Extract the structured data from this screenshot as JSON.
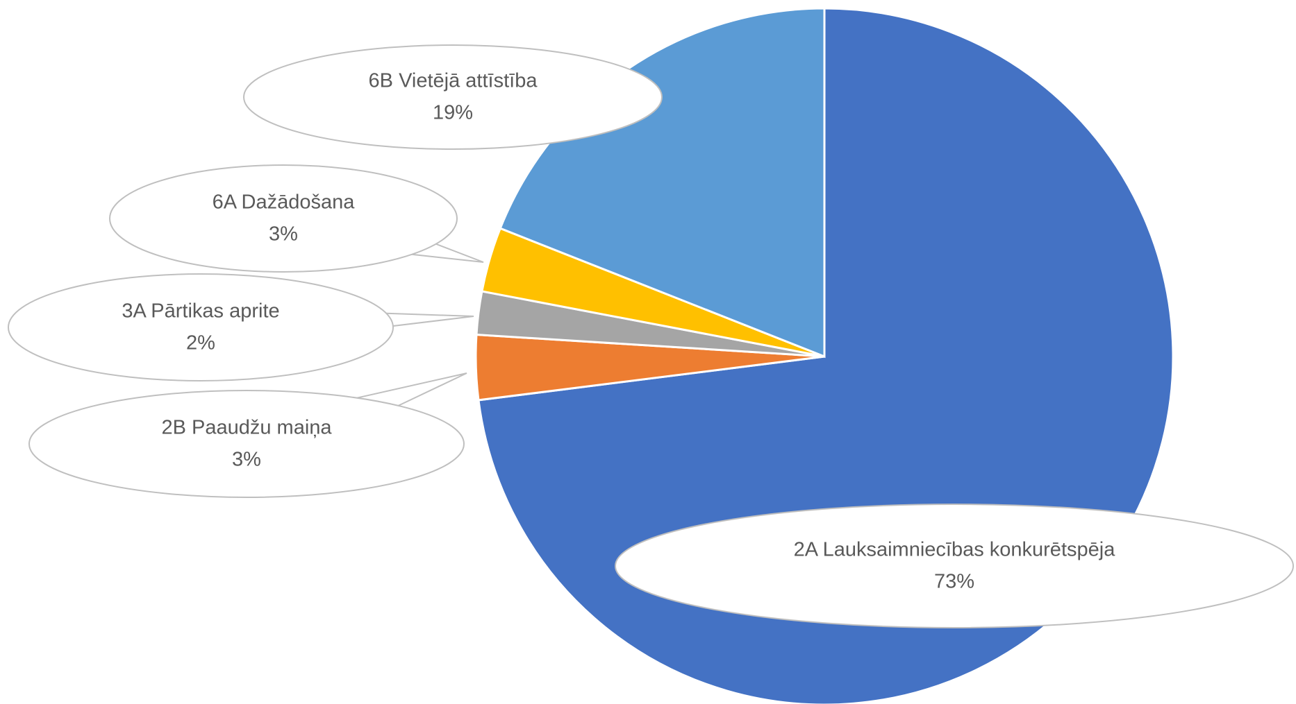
{
  "chart_data": {
    "type": "pie",
    "categories": [
      "2A Lauksaimniecības konkurētspēja",
      "2B Paaudžu maiņa",
      "3A Pārtikas aprite",
      "6A Dažādošana",
      "6B  Vietējā attīstība"
    ],
    "values": [
      73,
      3,
      2,
      3,
      19
    ],
    "value_labels": [
      "73%",
      "3%",
      "2%",
      "3%",
      "19%"
    ],
    "colors": [
      "#4472c4",
      "#ed7d31",
      "#a5a5a5",
      "#ffc000",
      "#5b9bd5"
    ]
  }
}
